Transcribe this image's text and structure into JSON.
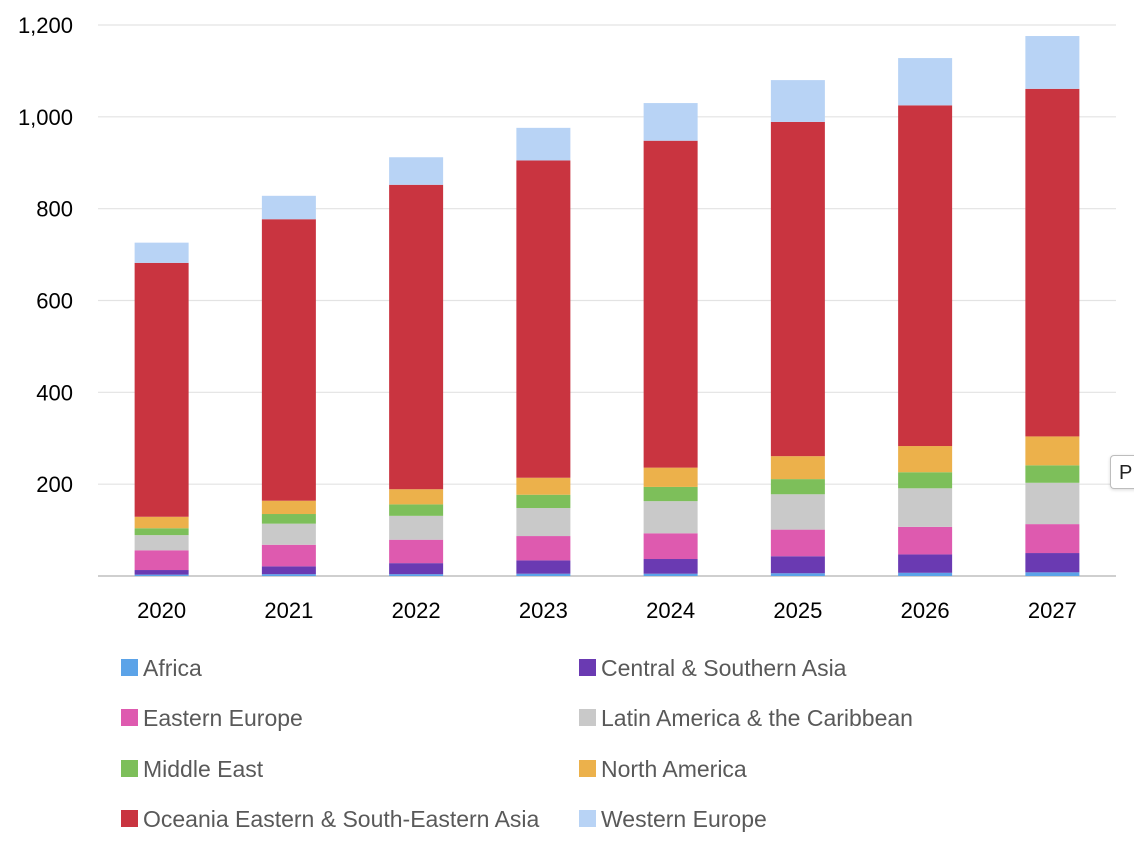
{
  "chart_data": {
    "type": "bar",
    "stacked": true,
    "categories": [
      "2020",
      "2021",
      "2022",
      "2023",
      "2024",
      "2025",
      "2026",
      "2027"
    ],
    "ylim": [
      0,
      1200
    ],
    "yticks": [
      0,
      200,
      400,
      600,
      800,
      1000,
      1200
    ],
    "ytick_labels": [
      "",
      "200",
      "400",
      "600",
      "800",
      "1,000",
      "1,200"
    ],
    "grid": true,
    "legend_position": "bottom",
    "series": [
      {
        "name": "Africa",
        "color": "#5ba3e8",
        "values": [
          3,
          4,
          4,
          5,
          5,
          6,
          7,
          8
        ]
      },
      {
        "name": "Central & Southern Asia",
        "color": "#6a3ab2",
        "values": [
          10,
          17,
          24,
          29,
          32,
          37,
          40,
          42
        ]
      },
      {
        "name": "Eastern Europe",
        "color": "#de5aaf",
        "values": [
          43,
          47,
          51,
          53,
          56,
          58,
          60,
          63
        ]
      },
      {
        "name": "Latin America & the Caribbean",
        "color": "#c9c9c9",
        "values": [
          33,
          46,
          52,
          61,
          70,
          77,
          84,
          90
        ]
      },
      {
        "name": "Middle East",
        "color": "#7dbf5a",
        "values": [
          15,
          21,
          25,
          29,
          31,
          33,
          35,
          38
        ]
      },
      {
        "name": "North America",
        "color": "#ecb14b",
        "values": [
          25,
          29,
          33,
          37,
          42,
          50,
          57,
          63
        ]
      },
      {
        "name": "Oceania Eastern & South-Eastern Asia",
        "color": "#c93440",
        "values": [
          553,
          613,
          663,
          691,
          712,
          728,
          742,
          757
        ]
      },
      {
        "name": "Western Europe",
        "color": "#b8d3f5",
        "values": [
          44,
          51,
          60,
          71,
          82,
          91,
          103,
          115
        ]
      }
    ]
  },
  "side_tab": {
    "label": "P"
  }
}
